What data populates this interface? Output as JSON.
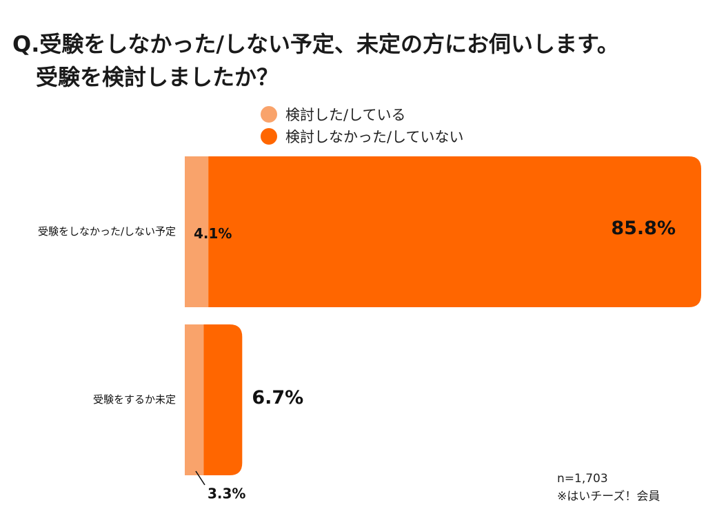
{
  "title": {
    "line1": "Q.受験をしなかった/しない予定、未定の方にお伺いします。",
    "line2": "受験を検討しましたか？"
  },
  "legend": [
    {
      "label": "検討した/している",
      "color": "#F9A36B"
    },
    {
      "label": "検討しなかった/していない",
      "color": "#FF6600"
    }
  ],
  "chart_data": {
    "type": "bar",
    "orientation": "horizontal",
    "stacked": true,
    "title": "受験を検討しましたか？",
    "categories": [
      "受験をしなかった/しない予定",
      "受験をするか未定"
    ],
    "series": [
      {
        "name": "検討した/している",
        "values": [
          4.1,
          3.3
        ],
        "labels": [
          "4.1%",
          "3.3%"
        ]
      },
      {
        "name": "検討しなかった/していない",
        "values": [
          85.8,
          6.7
        ],
        "labels": [
          "85.8%",
          "6.7%"
        ]
      }
    ],
    "xlim": [
      0,
      90
    ],
    "unit": "%"
  },
  "footnote": {
    "sample": "n=1,703",
    "source": "※はいチーズ！会員"
  }
}
